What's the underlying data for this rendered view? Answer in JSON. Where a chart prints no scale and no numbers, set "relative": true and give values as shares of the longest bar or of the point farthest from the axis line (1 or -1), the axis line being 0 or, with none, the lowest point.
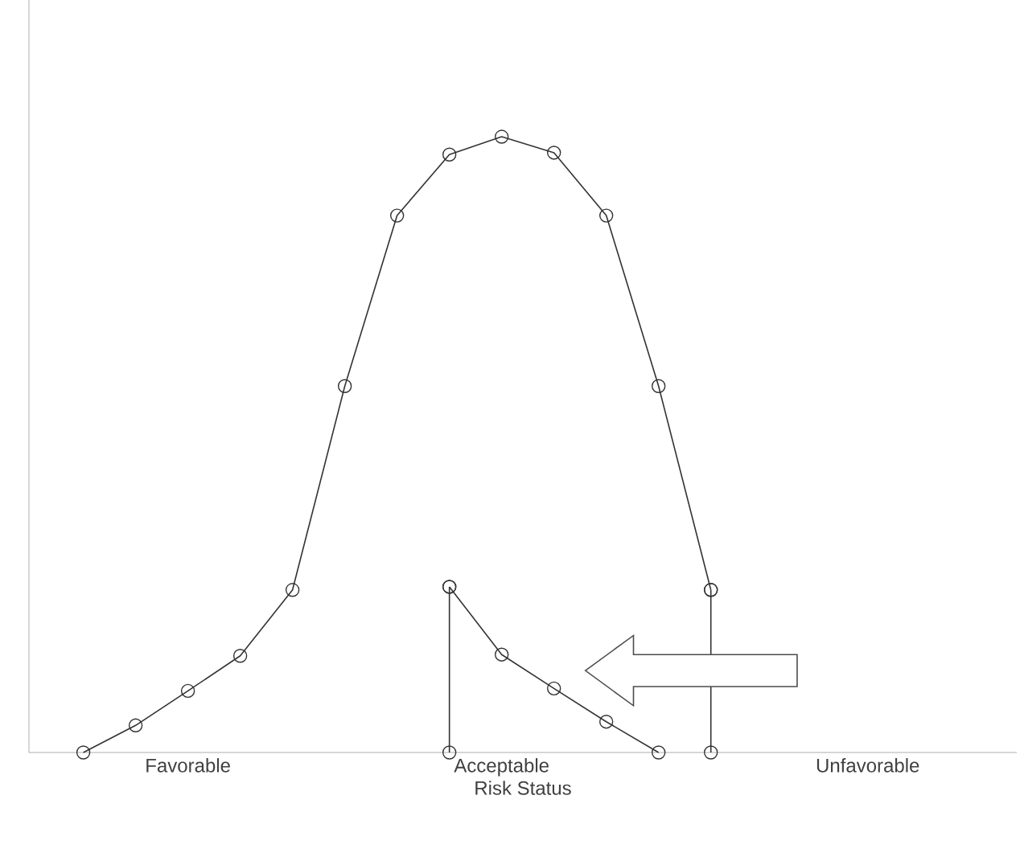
{
  "chart_data": {
    "type": "line",
    "relative": true,
    "xlabel": "Risk Status",
    "categories": [
      null,
      null,
      "Favorable",
      null,
      null,
      null,
      null,
      null,
      "Acceptable",
      null,
      null,
      null,
      null,
      null,
      null,
      "Unfavorable"
    ],
    "series": [
      {
        "color": "#333333",
        "values": [
          0,
          0.044,
          0.1,
          0.157,
          0.264,
          0.595,
          0.872,
          0.971,
          1,
          0.974,
          0.872,
          0.595,
          0.264,
          null,
          null,
          null
        ]
      },
      {
        "color": "#333333",
        "values": [
          null,
          null,
          null,
          null,
          null,
          null,
          null,
          0.269,
          0.159,
          0.104,
          0.05,
          0,
          null,
          null,
          null,
          null
        ]
      },
      {
        "type": "lollipop",
        "color": "#333333",
        "values": [
          null,
          null,
          null,
          null,
          null,
          null,
          null,
          0.269,
          null,
          null,
          null,
          null,
          0.264,
          null,
          null,
          null
        ]
      },
      {
        "type": "scatter",
        "color": "#333333",
        "values": [
          null,
          null,
          null,
          null,
          null,
          null,
          null,
          0,
          null,
          null,
          null,
          null,
          0,
          null,
          null,
          null
        ]
      }
    ],
    "marker": "circle",
    "line_style": "solid",
    "grid": false
  }
}
